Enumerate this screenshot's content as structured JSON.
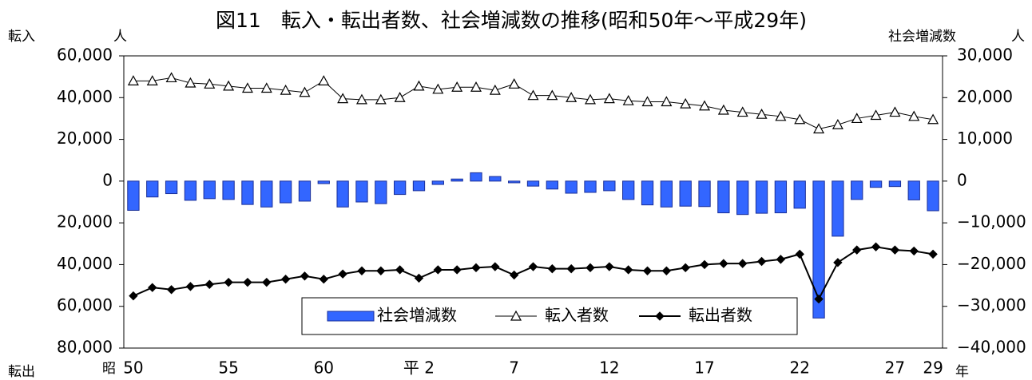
{
  "chart_data": {
    "type": "bar",
    "title": "図11　転入・転出者数、社会増減数の推移(昭和50年～平成29年)",
    "ylabel": "転入",
    "ylabel_unit": "人",
    "ylabel_bottom": "転出",
    "y2label": "社会増減数",
    "y2label_unit": "人",
    "x_prefix": "昭",
    "x_suffix": "年",
    "categories": [
      "50",
      null,
      null,
      null,
      null,
      "55",
      null,
      null,
      null,
      null,
      "60",
      null,
      null,
      null,
      null,
      "平 2",
      null,
      null,
      null,
      null,
      "7",
      null,
      null,
      null,
      null,
      "12",
      null,
      null,
      null,
      null,
      "17",
      null,
      null,
      null,
      null,
      "22",
      null,
      null,
      null,
      null,
      "27",
      null,
      "29"
    ],
    "series": [
      {
        "name": "社会増減数",
        "type": "bar",
        "axis": "y2",
        "color": "#3366ff",
        "values": [
          -7000,
          -3800,
          -3000,
          -4600,
          -4200,
          -4400,
          -5600,
          -6200,
          -5200,
          -4800,
          -600,
          -6200,
          -5000,
          -5400,
          -3200,
          -2300,
          -800,
          500,
          2000,
          1100,
          -400,
          -1200,
          -1900,
          -2900,
          -2700,
          -2300,
          -4400,
          -5700,
          -6200,
          -6000,
          -6100,
          -7600,
          -8000,
          -7700,
          -7600,
          -6500,
          -32800,
          -13200,
          -4400,
          -1500,
          -1300,
          -4500,
          -7100
        ]
      },
      {
        "name": "転入者数",
        "type": "line",
        "marker": "triangle",
        "color": "#000000",
        "values": [
          48000,
          48000,
          49500,
          47000,
          46500,
          45500,
          44500,
          44500,
          43500,
          42500,
          48000,
          39500,
          39000,
          39000,
          40000,
          45500,
          44000,
          45000,
          45000,
          43500,
          46500,
          41000,
          41000,
          40000,
          39000,
          39500,
          38500,
          38000,
          38000,
          37000,
          36000,
          34000,
          33000,
          32000,
          31000,
          29500,
          25000,
          27000,
          30000,
          31500,
          33000,
          31000,
          29500
        ]
      },
      {
        "name": "転出者数",
        "type": "line",
        "marker": "diamond",
        "color": "#000000",
        "values": [
          -55000,
          -51000,
          -52000,
          -50500,
          -49500,
          -48500,
          -48500,
          -48500,
          -47000,
          -45500,
          -47000,
          -44500,
          -43000,
          -43000,
          -42500,
          -46500,
          -42500,
          -42500,
          -41500,
          -41000,
          -45000,
          -41000,
          -42000,
          -42000,
          -41500,
          -41000,
          -42500,
          -43000,
          -43000,
          -41500,
          -40000,
          -39500,
          -39500,
          -38500,
          -37500,
          -35000,
          -56500,
          -39000,
          -33000,
          -31500,
          -33000,
          -33500,
          -35000
        ]
      }
    ],
    "ylim": [
      -80000,
      60000
    ],
    "yticks": [
      {
        "value": 60000,
        "label": "60,000"
      },
      {
        "value": 40000,
        "label": "40,000"
      },
      {
        "value": 20000,
        "label": "20,000"
      },
      0,
      {
        "value": -20000,
        "label": "20,000"
      },
      {
        "value": -40000,
        "label": "40,000"
      },
      {
        "value": -60000,
        "label": "60,000"
      },
      {
        "value": -80000,
        "label": "80,000"
      }
    ],
    "y2lim": [
      -40000,
      30000
    ],
    "y2ticks": [
      {
        "value": 30000,
        "label": "30,000"
      },
      {
        "value": 20000,
        "label": "20,000"
      },
      {
        "value": 10000,
        "label": "10,000"
      },
      0,
      {
        "value": -10000,
        "label": "−10,000"
      },
      {
        "value": -20000,
        "label": "−20,000"
      },
      {
        "value": -30000,
        "label": "−30,000"
      },
      {
        "value": -40000,
        "label": "−40,000"
      }
    ],
    "grid": false,
    "legend": "bottom"
  }
}
